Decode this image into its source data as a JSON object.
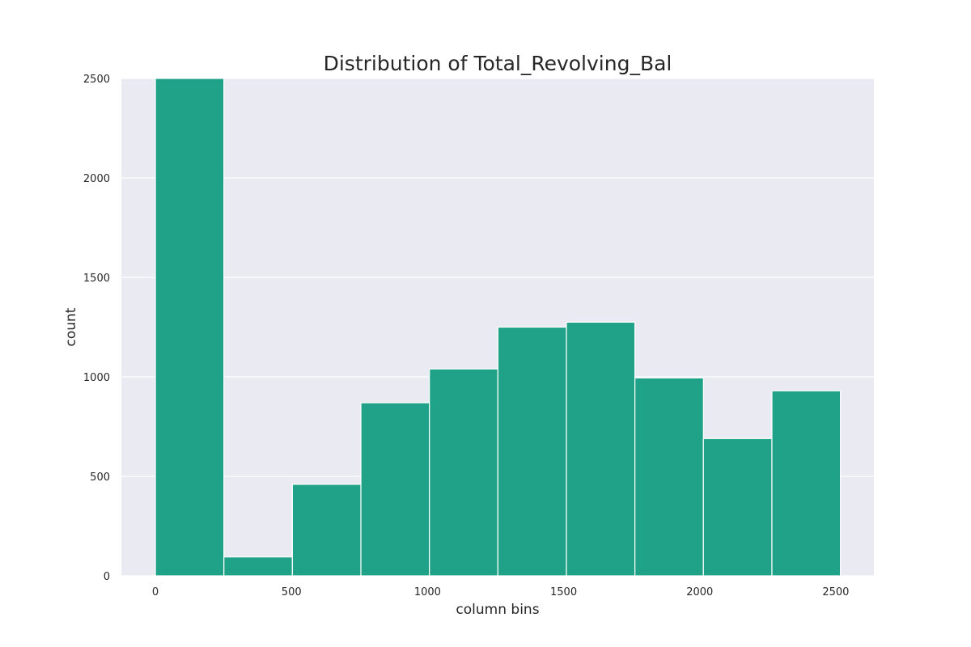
{
  "chart_data": {
    "type": "bar",
    "title": "Distribution of Total_Revolving_Bal",
    "xlabel": "column bins",
    "ylabel": "count",
    "xlim": [
      -125,
      2640
    ],
    "ylim": [
      0,
      2500
    ],
    "xticks": [
      0,
      500,
      1000,
      1500,
      2000,
      2500
    ],
    "yticks": [
      0,
      500,
      1000,
      1500,
      2000,
      2500
    ],
    "bin_edges": [
      0,
      251.7,
      503.4,
      755.1,
      1006.8,
      1258.5,
      1510.2,
      1761.9,
      2013.6,
      2265.3,
      2517
    ],
    "values": [
      2500,
      95,
      460,
      870,
      1040,
      1250,
      1275,
      995,
      690,
      930
    ],
    "grid": true,
    "bar_color": "#20a288",
    "background_color": "#eaeaf2"
  }
}
